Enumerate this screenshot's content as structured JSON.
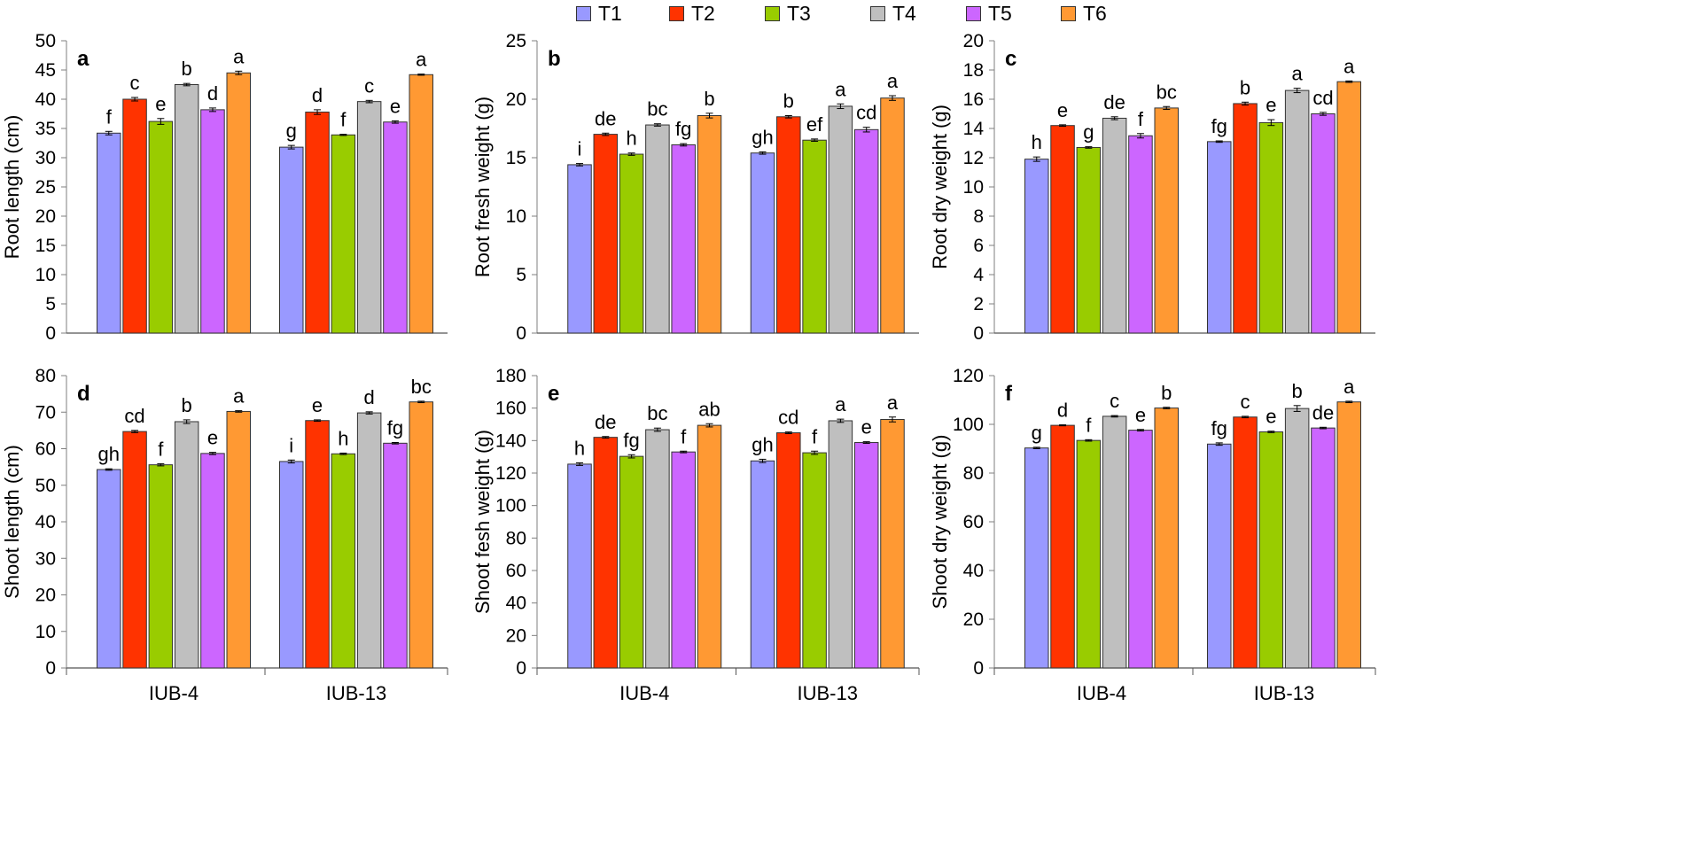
{
  "legend": [
    {
      "name": "T1",
      "color": "#9999FF"
    },
    {
      "name": "T2",
      "color": "#FF3300"
    },
    {
      "name": "T3",
      "color": "#99CC00"
    },
    {
      "name": "T4",
      "color": "#BFBFBF"
    },
    {
      "name": "T5",
      "color": "#CC66FF"
    },
    {
      "name": "T6",
      "color": "#FF9933"
    }
  ],
  "chart_data": [
    {
      "type": "bar",
      "panel": "a",
      "ylabel": "Root length (cm)",
      "ylim": [
        0,
        50
      ],
      "ytick_step": 5,
      "categories": [
        "IUB-4",
        "IUB-13"
      ],
      "show_xlabels": false,
      "series": [
        {
          "name": "T1",
          "values": [
            34.2,
            31.8
          ],
          "errors": [
            0.3,
            0.3
          ],
          "letters": [
            "f",
            "g"
          ]
        },
        {
          "name": "T2",
          "values": [
            40.0,
            37.8
          ],
          "errors": [
            0.3,
            0.4
          ],
          "letters": [
            "c",
            "d"
          ]
        },
        {
          "name": "T3",
          "values": [
            36.2,
            33.9
          ],
          "errors": [
            0.5,
            0.1
          ],
          "letters": [
            "e",
            "f"
          ]
        },
        {
          "name": "T4",
          "values": [
            42.5,
            39.6
          ],
          "errors": [
            0.2,
            0.2
          ],
          "letters": [
            "b",
            "c"
          ]
        },
        {
          "name": "T5",
          "values": [
            38.2,
            36.1
          ],
          "errors": [
            0.3,
            0.2
          ],
          "letters": [
            "d",
            "e"
          ]
        },
        {
          "name": "T6",
          "values": [
            44.5,
            44.2
          ],
          "errors": [
            0.3,
            0.1
          ],
          "letters": [
            "a",
            "a"
          ]
        }
      ]
    },
    {
      "type": "bar",
      "panel": "b",
      "ylabel": "Root fresh weight (g)",
      "ylim": [
        0,
        25
      ],
      "ytick_step": 5,
      "categories": [
        "IUB-4",
        "IUB-13"
      ],
      "show_xlabels": false,
      "series": [
        {
          "name": "T1",
          "values": [
            14.4,
            15.4
          ],
          "errors": [
            0.1,
            0.1
          ],
          "letters": [
            "i",
            "gh"
          ]
        },
        {
          "name": "T2",
          "values": [
            17.0,
            18.5
          ],
          "errors": [
            0.1,
            0.1
          ],
          "letters": [
            "de",
            "b"
          ]
        },
        {
          "name": "T3",
          "values": [
            15.3,
            16.5
          ],
          "errors": [
            0.1,
            0.1
          ],
          "letters": [
            "h",
            "ef"
          ]
        },
        {
          "name": "T4",
          "values": [
            17.8,
            19.4
          ],
          "errors": [
            0.1,
            0.2
          ],
          "letters": [
            "bc",
            "a"
          ]
        },
        {
          "name": "T5",
          "values": [
            16.1,
            17.4
          ],
          "errors": [
            0.1,
            0.2
          ],
          "letters": [
            "fg",
            "cd"
          ]
        },
        {
          "name": "T6",
          "values": [
            18.6,
            20.1
          ],
          "errors": [
            0.2,
            0.2
          ],
          "letters": [
            "b",
            "a"
          ]
        }
      ]
    },
    {
      "type": "bar",
      "panel": "c",
      "ylabel": "Root dry weight (g)",
      "ylim": [
        0,
        20
      ],
      "ytick_step": 2,
      "categories": [
        "IUB-4",
        "IUB-13"
      ],
      "show_xlabels": false,
      "series": [
        {
          "name": "T1",
          "values": [
            11.9,
            13.1
          ],
          "errors": [
            0.15,
            0.05
          ],
          "letters": [
            "h",
            "fg"
          ]
        },
        {
          "name": "T2",
          "values": [
            14.2,
            15.7
          ],
          "errors": [
            0.05,
            0.1
          ],
          "letters": [
            "e",
            "b"
          ]
        },
        {
          "name": "T3",
          "values": [
            12.7,
            14.4
          ],
          "errors": [
            0.05,
            0.2
          ],
          "letters": [
            "g",
            "e"
          ]
        },
        {
          "name": "T4",
          "values": [
            14.7,
            16.6
          ],
          "errors": [
            0.1,
            0.15
          ],
          "letters": [
            "de",
            "a"
          ]
        },
        {
          "name": "T5",
          "values": [
            13.5,
            15.0
          ],
          "errors": [
            0.15,
            0.1
          ],
          "letters": [
            "f",
            "cd"
          ]
        },
        {
          "name": "T6",
          "values": [
            15.4,
            17.2
          ],
          "errors": [
            0.1,
            0.05
          ],
          "letters": [
            "bc",
            "a"
          ]
        }
      ]
    },
    {
      "type": "bar",
      "panel": "d",
      "ylabel": "Shoot length (cm)",
      "ylim": [
        0,
        80
      ],
      "ytick_step": 10,
      "categories": [
        "IUB-4",
        "IUB-13"
      ],
      "show_xlabels": true,
      "series": [
        {
          "name": "T1",
          "values": [
            54.3,
            56.5
          ],
          "errors": [
            0.2,
            0.4
          ],
          "letters": [
            "gh",
            "i"
          ]
        },
        {
          "name": "T2",
          "values": [
            64.7,
            67.7
          ],
          "errors": [
            0.3,
            0.2
          ],
          "letters": [
            "cd",
            "e"
          ]
        },
        {
          "name": "T3",
          "values": [
            55.6,
            58.6
          ],
          "errors": [
            0.3,
            0.2
          ],
          "letters": [
            "f",
            "h"
          ]
        },
        {
          "name": "T4",
          "values": [
            67.4,
            69.8
          ],
          "errors": [
            0.5,
            0.3
          ],
          "letters": [
            "b",
            "d"
          ]
        },
        {
          "name": "T5",
          "values": [
            58.7,
            61.5
          ],
          "errors": [
            0.3,
            0.2
          ],
          "letters": [
            "e",
            "fg"
          ]
        },
        {
          "name": "T6",
          "values": [
            70.2,
            72.8
          ],
          "errors": [
            0.2,
            0.2
          ],
          "letters": [
            "a",
            "bc"
          ]
        }
      ]
    },
    {
      "type": "bar",
      "panel": "e",
      "ylabel": "Shoot fesh weight (g)",
      "ylim": [
        0,
        180
      ],
      "ytick_step": 20,
      "categories": [
        "IUB-4",
        "IUB-13"
      ],
      "show_xlabels": true,
      "series": [
        {
          "name": "T1",
          "values": [
            125.5,
            127.5
          ],
          "errors": [
            0.8,
            1.0
          ],
          "letters": [
            "h",
            "gh"
          ]
        },
        {
          "name": "T2",
          "values": [
            142.0,
            144.8
          ],
          "errors": [
            0.5,
            0.5
          ],
          "letters": [
            "de",
            "cd"
          ]
        },
        {
          "name": "T3",
          "values": [
            130.3,
            132.5
          ],
          "errors": [
            1.0,
            1.0
          ],
          "letters": [
            "fg",
            "f"
          ]
        },
        {
          "name": "T4",
          "values": [
            146.7,
            152.2
          ],
          "errors": [
            1.0,
            1.0
          ],
          "letters": [
            "bc",
            "a"
          ]
        },
        {
          "name": "T5",
          "values": [
            133.0,
            138.8
          ],
          "errors": [
            0.5,
            0.5
          ],
          "letters": [
            "f",
            "e"
          ]
        },
        {
          "name": "T6",
          "values": [
            149.4,
            153.0
          ],
          "errors": [
            1.0,
            1.5
          ],
          "letters": [
            "ab",
            "a"
          ]
        }
      ]
    },
    {
      "type": "bar",
      "panel": "f",
      "ylabel": "Shoot dry weight (g)",
      "ylim": [
        0,
        120
      ],
      "ytick_step": 20,
      "categories": [
        "IUB-4",
        "IUB-13"
      ],
      "show_xlabels": true,
      "series": [
        {
          "name": "T1",
          "values": [
            90.3,
            91.9
          ],
          "errors": [
            0.3,
            0.5
          ],
          "letters": [
            "g",
            "fg"
          ]
        },
        {
          "name": "T2",
          "values": [
            99.6,
            103.0
          ],
          "errors": [
            0.2,
            0.3
          ],
          "letters": [
            "d",
            "c"
          ]
        },
        {
          "name": "T3",
          "values": [
            93.4,
            96.9
          ],
          "errors": [
            0.3,
            0.3
          ],
          "letters": [
            "f",
            "e"
          ]
        },
        {
          "name": "T4",
          "values": [
            103.3,
            106.5
          ],
          "errors": [
            0.3,
            1.2
          ],
          "letters": [
            "c",
            "b"
          ]
        },
        {
          "name": "T5",
          "values": [
            97.6,
            98.5
          ],
          "errors": [
            0.3,
            0.3
          ],
          "letters": [
            "e",
            "de"
          ]
        },
        {
          "name": "T6",
          "values": [
            106.7,
            109.2
          ],
          "errors": [
            0.3,
            0.3
          ],
          "letters": [
            "b",
            "a"
          ]
        }
      ]
    }
  ]
}
